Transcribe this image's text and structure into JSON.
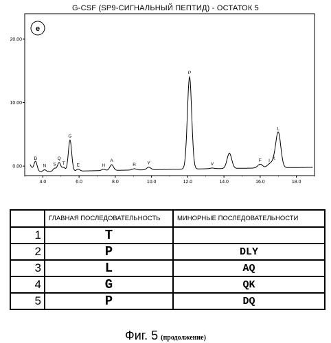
{
  "title": "G-CSF (SP9-СИГНАЛЬНЫЙ ПЕПТИД) - ОСТАТОК 5",
  "chart_data": {
    "type": "line",
    "panel_label": "e",
    "xlim": [
      3.0,
      19.0
    ],
    "ylim": [
      -1.5,
      24.0
    ],
    "x_ticks": [
      "4.0",
      "6.0",
      "8.0",
      "10.0",
      "12.0",
      "14.0",
      "16.0",
      "18.0"
    ],
    "y_ticks": [
      "0.00",
      "10.00",
      "20.00"
    ],
    "peaks": [
      {
        "label": "D",
        "x": 3.6,
        "height": 1.5
      },
      {
        "label": "N",
        "x": 4.1,
        "height": 0.3
      },
      {
        "label": "S",
        "x": 4.65,
        "height": 0.5
      },
      {
        "label": "Q",
        "x": 4.9,
        "height": 1.4
      },
      {
        "label": "T",
        "x": 5.15,
        "height": 0.6
      },
      {
        "label": "G",
        "x": 5.5,
        "height": 4.9
      },
      {
        "label": "E",
        "x": 5.95,
        "height": 0.3
      },
      {
        "label": "H",
        "x": 7.35,
        "height": 0.2
      },
      {
        "label": "A",
        "x": 7.8,
        "height": 0.9
      },
      {
        "label": "R",
        "x": 9.05,
        "height": 0.2
      },
      {
        "label": "Y",
        "x": 9.85,
        "height": 0.4
      },
      {
        "label": "P",
        "x": 12.1,
        "height": 14.5
      },
      {
        "label": "V",
        "x": 13.35,
        "height": 0.1
      },
      {
        "label": "",
        "x": 14.3,
        "height": 2.4
      },
      {
        "label": "F",
        "x": 16.0,
        "height": 0.6
      },
      {
        "label": "I",
        "x": 16.5,
        "height": 0.5
      },
      {
        "label": "K",
        "x": 16.75,
        "height": 0.8
      },
      {
        "label": "L",
        "x": 17.0,
        "height": 5.5
      }
    ]
  },
  "table": {
    "headers": [
      "",
      "ГЛАВНАЯ ПОСЛЕДОВАТЕЛЬНОСТЬ",
      "МИНОРНЫЕ ПОСЛЕДОВАТЕЛЬНОСТИ"
    ],
    "rows": [
      {
        "num": "1",
        "main": "T",
        "minor": ""
      },
      {
        "num": "2",
        "main": "P",
        "minor": "DLY"
      },
      {
        "num": "3",
        "main": "L",
        "minor": "AQ"
      },
      {
        "num": "4",
        "main": "G",
        "minor": "QK"
      },
      {
        "num": "5",
        "main": "P",
        "minor": "DQ"
      }
    ]
  },
  "caption": {
    "main": "Фиг. 5",
    "sub": "(продолжение)"
  }
}
